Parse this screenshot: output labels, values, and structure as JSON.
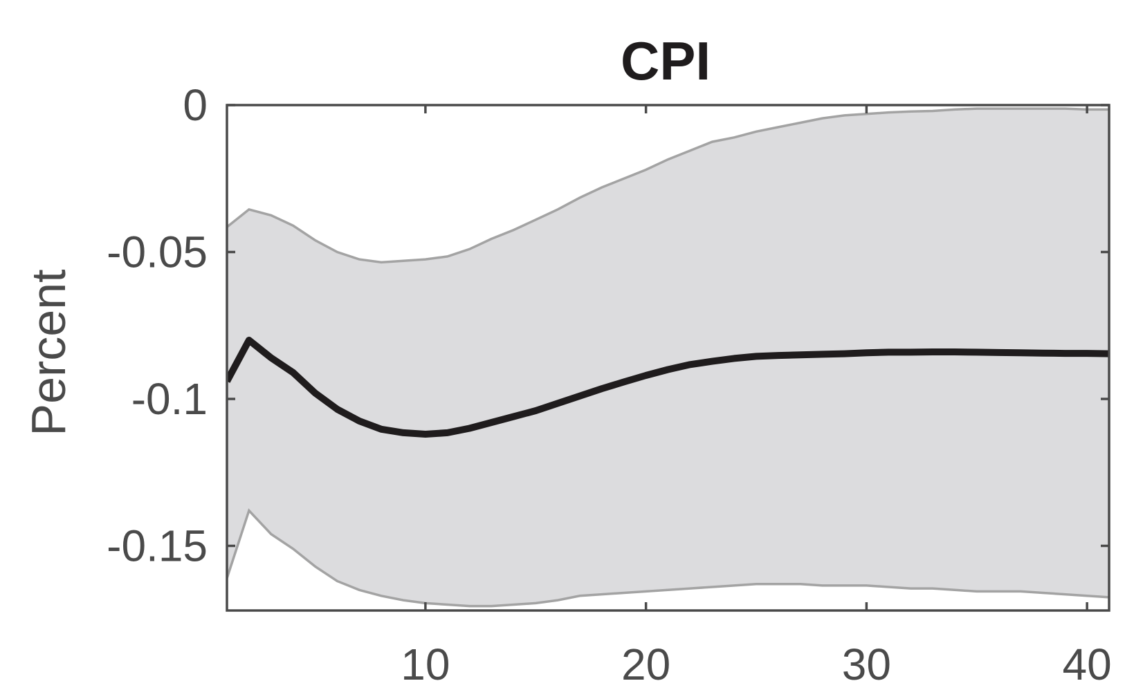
{
  "chart_data": {
    "type": "line",
    "title": "CPI",
    "xlabel": "",
    "ylabel": "Percent",
    "xlim": [
      1,
      41
    ],
    "ylim": [
      -0.172,
      0
    ],
    "xticks": [
      10,
      20,
      30,
      40
    ],
    "yticks": [
      0,
      -0.05,
      -0.1,
      -0.15
    ],
    "ytick_labels": [
      "0",
      "-0.05",
      "-0.1",
      "-0.15"
    ],
    "grid": false,
    "legend": "none",
    "colors": {
      "band_fill": "#dcdcde",
      "band_edge": "#a3a3a3",
      "median": "#1f1c1d",
      "axes": "#4a4a4a"
    },
    "x": [
      1,
      2,
      3,
      4,
      5,
      6,
      7,
      8,
      9,
      10,
      11,
      12,
      13,
      14,
      15,
      16,
      17,
      18,
      19,
      20,
      21,
      22,
      23,
      24,
      25,
      26,
      27,
      28,
      29,
      30,
      31,
      32,
      33,
      34,
      35,
      36,
      37,
      38,
      39,
      40,
      41
    ],
    "series": [
      {
        "role": "median",
        "values": [
          -0.094,
          -0.08,
          -0.086,
          -0.091,
          -0.098,
          -0.1035,
          -0.1075,
          -0.1103,
          -0.1115,
          -0.112,
          -0.1115,
          -0.11,
          -0.108,
          -0.106,
          -0.104,
          -0.1015,
          -0.099,
          -0.0965,
          -0.0942,
          -0.092,
          -0.09,
          -0.0883,
          -0.0872,
          -0.0862,
          -0.0855,
          -0.0852,
          -0.085,
          -0.0848,
          -0.0846,
          -0.0843,
          -0.0841,
          -0.0841,
          -0.084,
          -0.084,
          -0.0841,
          -0.0842,
          -0.0843,
          -0.0844,
          -0.0845,
          -0.0845,
          -0.0846
        ]
      },
      {
        "role": "upper",
        "values": [
          -0.0415,
          -0.0355,
          -0.0375,
          -0.041,
          -0.046,
          -0.05,
          -0.0525,
          -0.0535,
          -0.053,
          -0.0525,
          -0.0515,
          -0.049,
          -0.0455,
          -0.0425,
          -0.039,
          -0.0355,
          -0.0315,
          -0.028,
          -0.025,
          -0.022,
          -0.0185,
          -0.0155,
          -0.0125,
          -0.011,
          -0.009,
          -0.0075,
          -0.006,
          -0.0045,
          -0.0035,
          -0.003,
          -0.0025,
          -0.0022,
          -0.002,
          -0.0015,
          -0.0012,
          -0.0012,
          -0.0012,
          -0.0012,
          -0.0012,
          -0.0015,
          -0.0015
        ]
      },
      {
        "role": "lower",
        "values": [
          -0.161,
          -0.138,
          -0.146,
          -0.151,
          -0.157,
          -0.162,
          -0.165,
          -0.167,
          -0.1685,
          -0.1695,
          -0.17,
          -0.1705,
          -0.1705,
          -0.17,
          -0.1695,
          -0.1685,
          -0.167,
          -0.1665,
          -0.166,
          -0.1655,
          -0.165,
          -0.1645,
          -0.164,
          -0.1635,
          -0.163,
          -0.163,
          -0.163,
          -0.1635,
          -0.1635,
          -0.1635,
          -0.164,
          -0.1645,
          -0.1645,
          -0.165,
          -0.1655,
          -0.1655,
          -0.1655,
          -0.166,
          -0.1665,
          -0.167,
          -0.1675
        ]
      }
    ]
  }
}
